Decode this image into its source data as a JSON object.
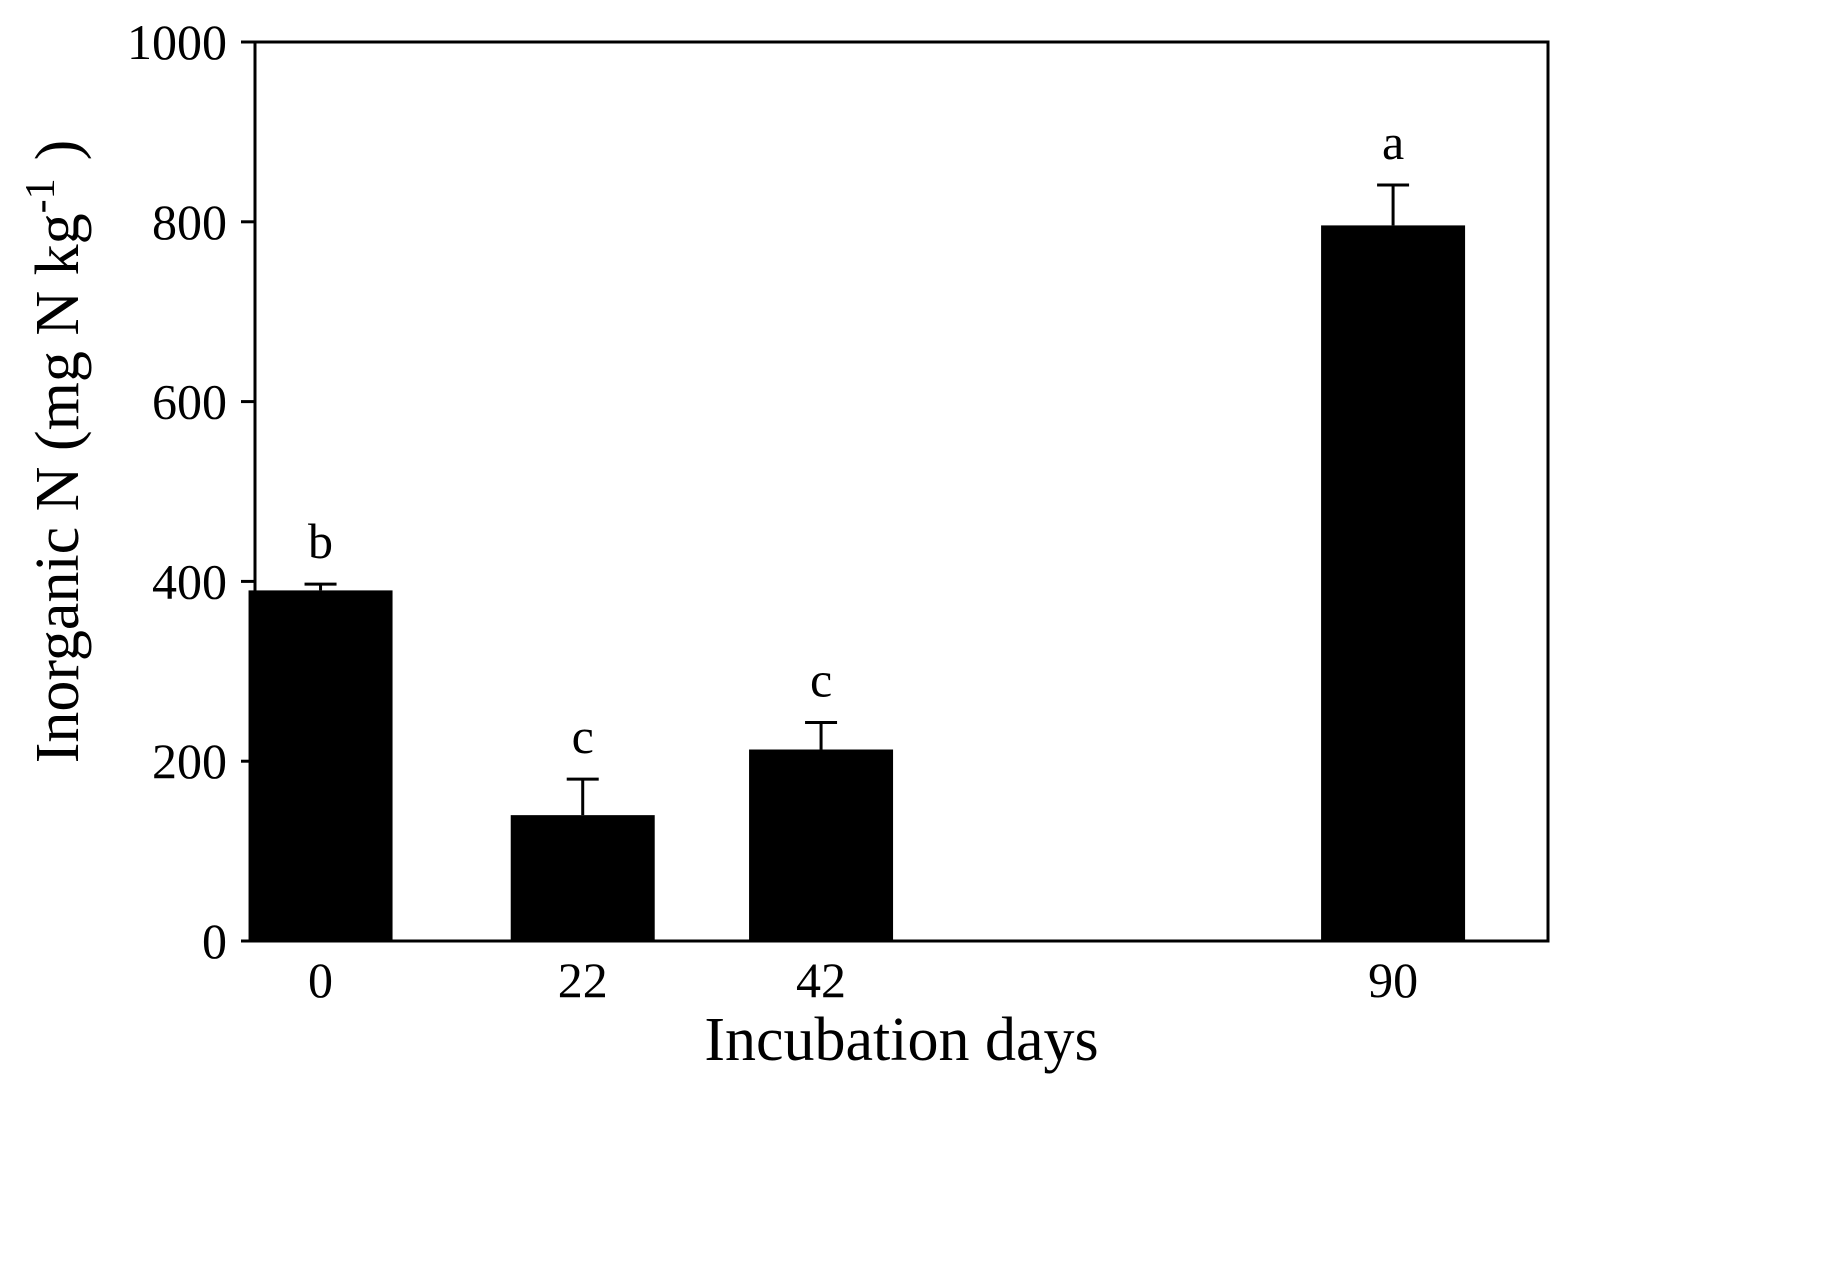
{
  "chart_data": {
    "type": "bar",
    "title": "",
    "xlabel": "Incubation days",
    "ylabel": "Inorganic N (mg N kg",
    "ylabel_sup": "-1",
    "ylabel_close": ")",
    "ylim": [
      0,
      1000
    ],
    "yticks": [
      0,
      200,
      400,
      600,
      800,
      1000
    ],
    "ytick_labels": [
      "0",
      "200",
      "400",
      "600",
      "800",
      "1000"
    ],
    "xlim": [
      -5.5,
      103
    ],
    "x": [
      0,
      22,
      42,
      90
    ],
    "categories": [
      "0",
      "22",
      "42",
      "90"
    ],
    "values": [
      390,
      140,
      213,
      796
    ],
    "errors": [
      7,
      40,
      30,
      45
    ],
    "letters": [
      "b",
      "c",
      "c",
      "a"
    ],
    "bar_color": "#000000",
    "grid": false,
    "legend": "none"
  }
}
